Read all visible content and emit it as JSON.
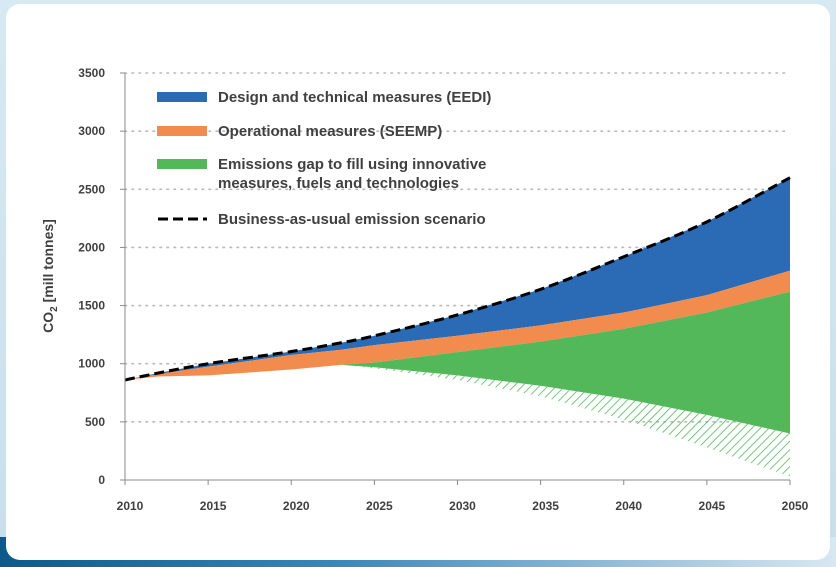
{
  "chart_data": {
    "type": "area",
    "title": "",
    "xlabel": "",
    "ylabel_main": "CO",
    "ylabel_sub": "2",
    "ylabel_rest": " [mill tonnes]",
    "xlim": [
      2010,
      2050
    ],
    "ylim": [
      0,
      3500
    ],
    "xticks": [
      "2010",
      "2015",
      "2020",
      "2025",
      "2030",
      "2035",
      "2040",
      "2045",
      "2050"
    ],
    "yticks": [
      "0",
      "500",
      "1000",
      "1500",
      "2000",
      "2500",
      "3000",
      "3500"
    ],
    "grid": "horizontal dotted",
    "legend_position": "top-left",
    "x": [
      2010,
      2012,
      2015,
      2020,
      2023,
      2025,
      2030,
      2035,
      2040,
      2045,
      2050
    ],
    "series": [
      {
        "name": "Design and technical measures (EEDI)",
        "color": "#2b6bb6",
        "upper": [
          860,
          920,
          1000,
          1105,
          1180,
          1240,
          1420,
          1640,
          1920,
          2220,
          2600
        ],
        "lower": [
          860,
          910,
          975,
          1075,
          1120,
          1160,
          1240,
          1330,
          1440,
          1590,
          1800
        ]
      },
      {
        "name": "Operational measures (SEEMP)",
        "color": "#f28b4e",
        "upper": [
          860,
          910,
          975,
          1075,
          1120,
          1160,
          1240,
          1330,
          1440,
          1590,
          1800
        ],
        "lower": [
          860,
          890,
          900,
          950,
          990,
          1010,
          1100,
          1190,
          1300,
          1440,
          1620
        ]
      },
      {
        "name": "Emissions gap to fill using innovative measures, fuels and technologies",
        "color": "#52b85a",
        "upper": [
          null,
          null,
          null,
          null,
          990,
          1010,
          1100,
          1190,
          1300,
          1440,
          1620
        ],
        "lower": [
          null,
          null,
          null,
          null,
          990,
          970,
          900,
          810,
          700,
          560,
          400
        ]
      },
      {
        "name": "",
        "color": "#52b85a",
        "style": "hatched",
        "upper": [
          null,
          null,
          null,
          null,
          990,
          970,
          900,
          810,
          700,
          560,
          400
        ],
        "lower": [
          null,
          null,
          null,
          null,
          990,
          960,
          860,
          720,
          520,
          280,
          30
        ]
      },
      {
        "name": "Business-as-usual emission scenario",
        "color": "#000000",
        "style": "dashed",
        "values": [
          860,
          920,
          1000,
          1105,
          1180,
          1240,
          1420,
          1640,
          1920,
          2220,
          2600
        ]
      }
    ],
    "legend": [
      {
        "label_lines": [
          "Design and technical measures (EEDI)"
        ],
        "kind": "box",
        "color": "#2b6bb6"
      },
      {
        "label_lines": [
          "Operational measures (SEEMP)"
        ],
        "kind": "box",
        "color": "#f28b4e"
      },
      {
        "label_lines": [
          "Emissions gap to fill using innovative",
          "measures, fuels and technologies"
        ],
        "kind": "box",
        "color": "#52b85a"
      },
      {
        "label_lines": [
          "Business-as-usual emission scenario"
        ],
        "kind": "dash",
        "color": "#000000"
      }
    ]
  }
}
